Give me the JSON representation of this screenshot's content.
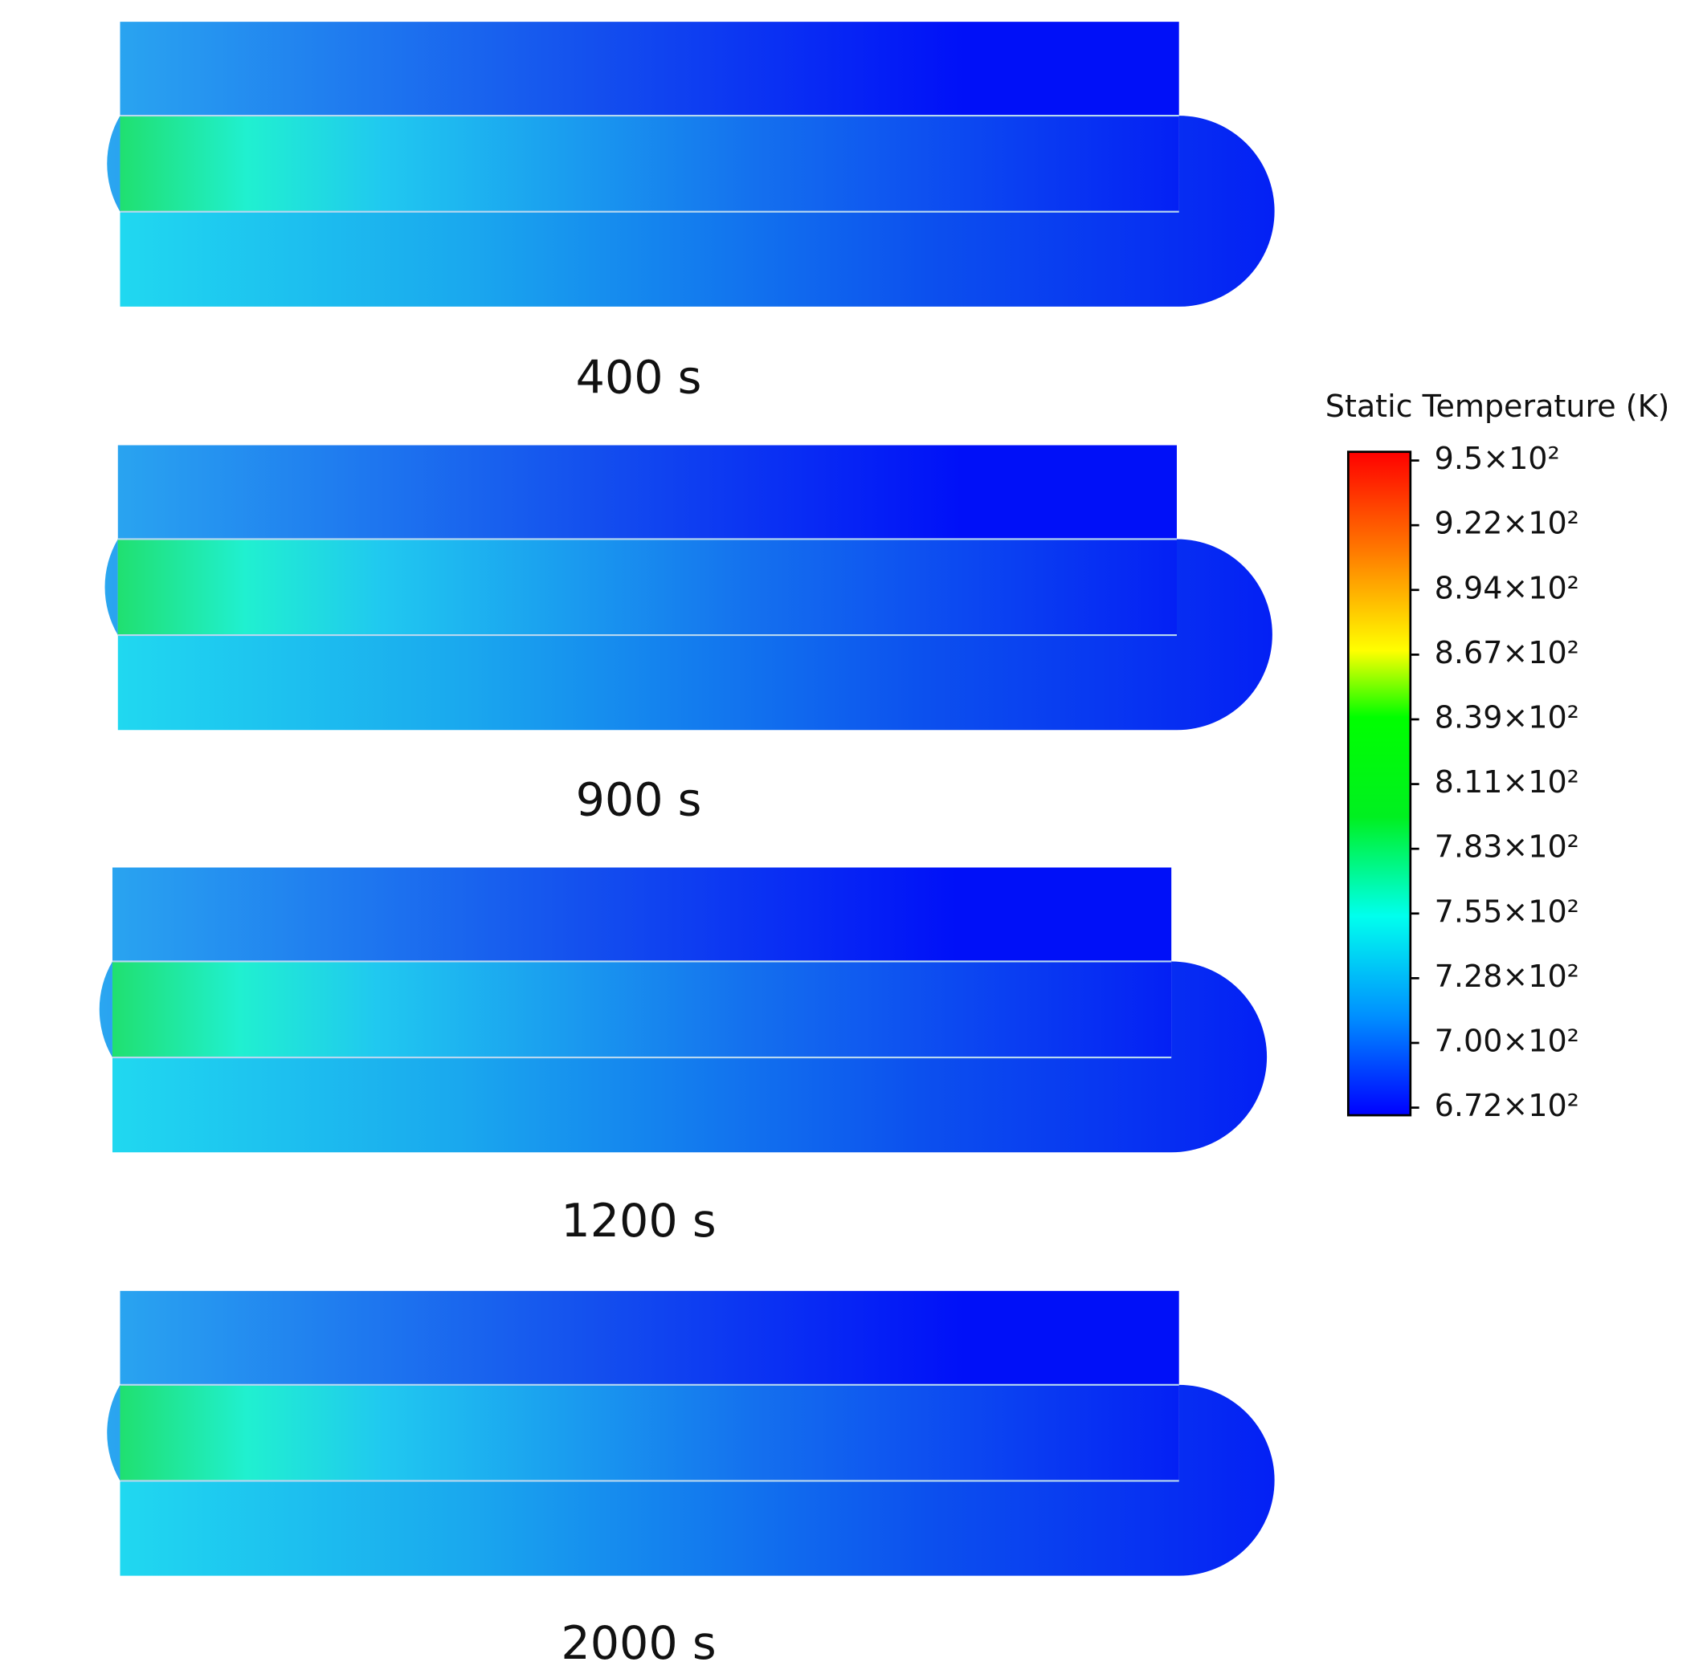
{
  "panels": [
    {
      "label": "400 s"
    },
    {
      "label": "900 s"
    },
    {
      "label": "1200 s"
    },
    {
      "label": "2000 s"
    }
  ],
  "legend": {
    "title": "Static Temperature (K)",
    "labels": [
      "9.5×10²",
      "9.22×10²",
      "8.94×10²",
      "8.67×10²",
      "8.39×10²",
      "8.11×10²",
      "7.83×10²",
      "7.55×10²",
      "7.28×10²",
      "7.00×10²",
      "6.72×10²"
    ]
  }
}
